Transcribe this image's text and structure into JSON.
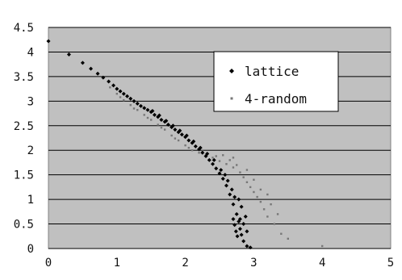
{
  "chart_data": {
    "type": "scatter",
    "title": "",
    "xlabel": "",
    "ylabel": "",
    "xlim": [
      0,
      5
    ],
    "ylim": [
      0,
      4.5
    ],
    "x_ticks": [
      0,
      1,
      2,
      3,
      4,
      5
    ],
    "y_ticks": [
      0,
      0.5,
      1,
      1.5,
      2,
      2.5,
      3,
      3.5,
      4,
      4.5
    ],
    "x_tick_labels": [
      "0",
      "1",
      "2",
      "3",
      "4",
      "5"
    ],
    "y_tick_labels": [
      "0",
      "0.5",
      "1",
      "1.5",
      "2",
      "2.5",
      "3",
      "3.5",
      "4",
      "4.5"
    ],
    "grid": "horizontal",
    "plot_background": "#c0c0c0",
    "legend_placement": "top-right",
    "series": [
      {
        "name": "lattice",
        "color": "#000000",
        "marker": "diamond",
        "points": [
          [
            0,
            4.22
          ],
          [
            0.3,
            3.95
          ],
          [
            0.5,
            3.78
          ],
          [
            0.62,
            3.66
          ],
          [
            0.72,
            3.56
          ],
          [
            0.8,
            3.48
          ],
          [
            0.88,
            3.4
          ],
          [
            0.95,
            3.32
          ],
          [
            1.0,
            3.25
          ],
          [
            1.05,
            3.2
          ],
          [
            1.1,
            3.15
          ],
          [
            1.15,
            3.1
          ],
          [
            1.2,
            3.05
          ],
          [
            1.25,
            3.0
          ],
          [
            1.3,
            2.95
          ],
          [
            1.35,
            2.9
          ],
          [
            1.4,
            2.86
          ],
          [
            1.45,
            2.82
          ],
          [
            1.5,
            2.78
          ],
          [
            1.55,
            2.72
          ],
          [
            1.6,
            2.68
          ],
          [
            1.65,
            2.62
          ],
          [
            1.7,
            2.58
          ],
          [
            1.75,
            2.52
          ],
          [
            1.8,
            2.47
          ],
          [
            1.85,
            2.42
          ],
          [
            1.9,
            2.37
          ],
          [
            1.95,
            2.32
          ],
          [
            2.0,
            2.27
          ],
          [
            2.05,
            2.2
          ],
          [
            2.1,
            2.15
          ],
          [
            2.15,
            2.08
          ],
          [
            2.2,
            2.02
          ],
          [
            2.25,
            1.95
          ],
          [
            2.3,
            1.88
          ],
          [
            2.35,
            1.8
          ],
          [
            2.4,
            1.72
          ],
          [
            2.45,
            1.63
          ],
          [
            2.5,
            1.53
          ],
          [
            2.55,
            1.42
          ],
          [
            2.6,
            1.28
          ],
          [
            2.65,
            1.1
          ],
          [
            2.7,
            0.9
          ],
          [
            2.75,
            0.7
          ],
          [
            2.78,
            0.55
          ],
          [
            2.8,
            0.4
          ],
          [
            2.82,
            0.28
          ],
          [
            2.85,
            0.15
          ],
          [
            2.9,
            0.05
          ],
          [
            2.95,
            0.02
          ],
          [
            1.52,
            2.8
          ],
          [
            1.62,
            2.71
          ],
          [
            1.72,
            2.6
          ],
          [
            1.82,
            2.5
          ],
          [
            1.92,
            2.4
          ],
          [
            2.02,
            2.3
          ],
          [
            2.12,
            2.18
          ],
          [
            2.22,
            2.05
          ],
          [
            2.32,
            1.93
          ],
          [
            2.42,
            1.8
          ],
          [
            2.52,
            1.6
          ],
          [
            2.58,
            1.5
          ],
          [
            2.62,
            1.38
          ],
          [
            2.68,
            1.2
          ],
          [
            2.72,
            1.05
          ],
          [
            2.7,
            0.6
          ],
          [
            2.72,
            0.48
          ],
          [
            2.74,
            0.35
          ],
          [
            2.76,
            0.25
          ],
          [
            2.8,
            0.6
          ],
          [
            2.85,
            0.5
          ],
          [
            2.9,
            0.35
          ],
          [
            2.88,
            0.65
          ],
          [
            2.82,
            0.85
          ],
          [
            2.78,
            1.0
          ]
        ]
      },
      {
        "name": "4-random",
        "color": "#777777",
        "marker": "dot",
        "points": [
          [
            0.9,
            3.28
          ],
          [
            1.0,
            3.15
          ],
          [
            1.05,
            3.08
          ],
          [
            1.1,
            3.02
          ],
          [
            1.2,
            2.92
          ],
          [
            1.3,
            2.82
          ],
          [
            1.4,
            2.72
          ],
          [
            1.5,
            2.62
          ],
          [
            1.6,
            2.52
          ],
          [
            1.7,
            2.42
          ],
          [
            1.8,
            2.3
          ],
          [
            1.9,
            2.2
          ],
          [
            2.0,
            2.1
          ],
          [
            2.1,
            2.0
          ],
          [
            2.2,
            1.95
          ],
          [
            2.3,
            1.9
          ],
          [
            2.4,
            1.85
          ],
          [
            2.5,
            1.78
          ],
          [
            2.6,
            1.72
          ],
          [
            2.7,
            1.65
          ],
          [
            2.8,
            1.55
          ],
          [
            2.85,
            1.45
          ],
          [
            2.9,
            1.35
          ],
          [
            2.95,
            1.25
          ],
          [
            3.0,
            1.15
          ],
          [
            3.05,
            1.05
          ],
          [
            3.1,
            0.95
          ],
          [
            3.15,
            0.8
          ],
          [
            3.2,
            0.65
          ],
          [
            3.3,
            0.5
          ],
          [
            3.4,
            0.3
          ],
          [
            3.5,
            0.2
          ],
          [
            4.0,
            0.05
          ],
          [
            1.25,
            2.85
          ],
          [
            1.45,
            2.66
          ],
          [
            1.65,
            2.46
          ],
          [
            1.85,
            2.24
          ],
          [
            2.05,
            2.05
          ],
          [
            2.25,
            1.98
          ],
          [
            2.45,
            1.88
          ],
          [
            2.65,
            1.8
          ],
          [
            2.75,
            1.7
          ],
          [
            2.9,
            1.6
          ],
          [
            3.0,
            1.4
          ],
          [
            3.1,
            1.2
          ],
          [
            3.2,
            1.1
          ],
          [
            3.25,
            0.9
          ],
          [
            3.35,
            0.7
          ],
          [
            2.55,
            1.9
          ],
          [
            2.7,
            1.85
          ]
        ]
      }
    ]
  }
}
